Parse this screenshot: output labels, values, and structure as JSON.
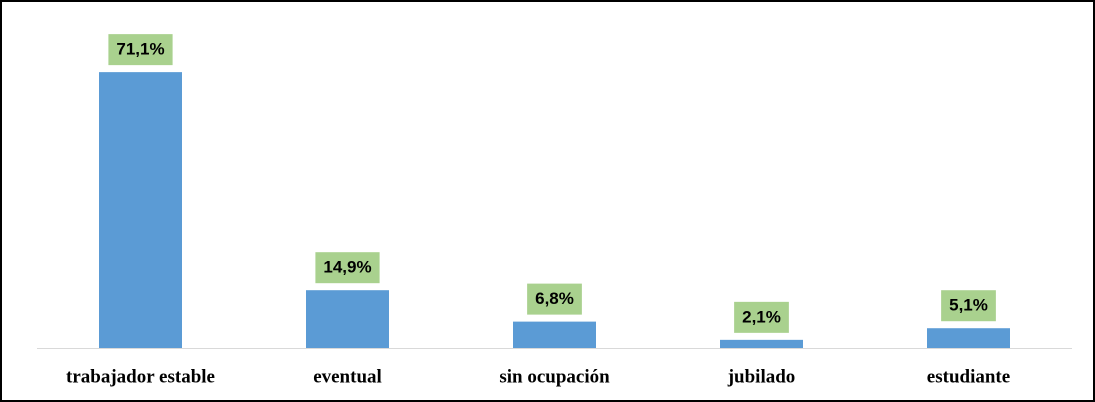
{
  "chart_data": {
    "type": "bar",
    "categories": [
      "trabajador estable",
      "eventual",
      "sin ocupación",
      "jubilado",
      "estudiante"
    ],
    "values": [
      71.1,
      14.9,
      6.8,
      2.1,
      5.1
    ],
    "value_labels": [
      "71,1%",
      "14,9%",
      "6,8%",
      "2,1%",
      "5,1%"
    ],
    "color": "#5b9bd5",
    "label_color": "#a9d18e"
  }
}
